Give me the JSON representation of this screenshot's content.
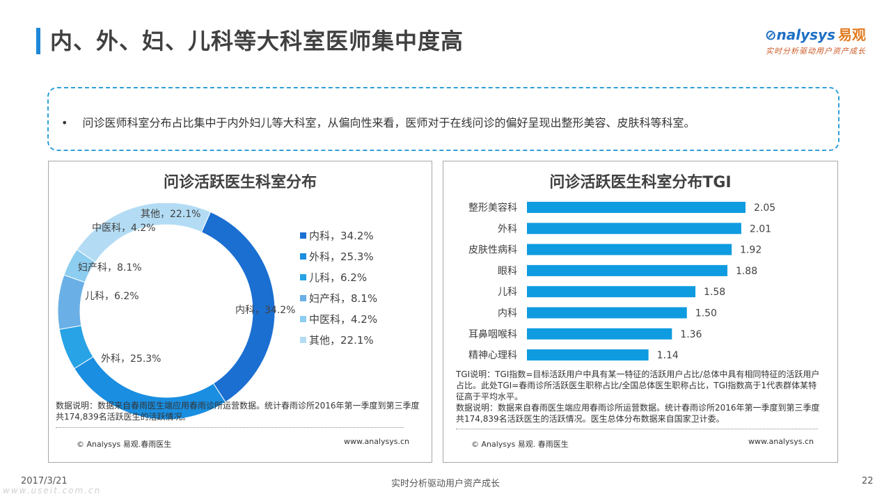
{
  "header": {
    "title": "内、外、妇、儿科等大科室医师集中度高",
    "logo_en": "nalysys",
    "logo_cn": "易观",
    "logo_tagline": "实时分析驱动用户资产成长"
  },
  "summary": {
    "bullet": "•",
    "text": "问诊医师科室分布占比集中于内外妇儿等大科室，从偏向性来看，医师对于在线问诊的偏好呈现出整形美容、皮肤科等科室。"
  },
  "left_panel": {
    "title": "问诊活跃医生科室分布",
    "note": "数据说明：数据来自春雨医生端应用春雨诊所运营数据。统计春雨诊所2016年第一季度到第三季度共174,839名活跃医生的活跃情况。",
    "copyright": "© Analysys 易观.春雨医生",
    "url": "www.analysys.cn"
  },
  "right_panel": {
    "title": "问诊活跃医生科室分布TGI",
    "note_tgi": "TGI说明：TGI指数=目标活跃用户中具有某一特征的活跃用户占比/总体中具有相同特征的活跃用户占比。此处TGI=春雨诊所活跃医生职称占比/全国总体医生职称占比，TGI指数高于1代表群体某特征高于平均水平。",
    "note_data": "数据说明：数据来自春雨医生端应用春雨诊所运营数据。统计春雨诊所2016年第一季度到第三季度共174,839名活跃医生的活跃情况。医生总体分布数据来自国家卫计委。",
    "copyright": "© Analysys 易观. 春雨医生",
    "url": "www.analysys.cn"
  },
  "chart_data": [
    {
      "type": "pie",
      "title": "问诊活跃医生科室分布",
      "donut": true,
      "categories": [
        "内科",
        "外科",
        "儿科",
        "妇产科",
        "中医科",
        "其他"
      ],
      "values": [
        34.2,
        25.3,
        6.2,
        8.1,
        4.2,
        22.1
      ],
      "labels": [
        "内科，34.2%",
        "外科，25.3%",
        "儿科，6.2%",
        "妇产科，8.1%",
        "中医科，4.2%",
        "其他，22.1%"
      ],
      "colors": [
        "#1b6fd1",
        "#1a8ee0",
        "#27a3e6",
        "#6ab0e6",
        "#8ccdf0",
        "#b3dcf4"
      ],
      "legend_position": "right"
    },
    {
      "type": "bar",
      "orientation": "horizontal",
      "title": "问诊活跃医生科室分布TGI",
      "categories": [
        "整形美容科",
        "外科",
        "皮肤性病科",
        "眼科",
        "儿科",
        "内科",
        "耳鼻咽喉科",
        "精神心理科"
      ],
      "values": [
        2.05,
        2.01,
        1.92,
        1.88,
        1.58,
        1.5,
        1.36,
        1.14
      ],
      "value_labels": [
        "2.05",
        "2.01",
        "1.92",
        "1.88",
        "1.58",
        "1.50",
        "1.36",
        "1.14"
      ],
      "xlim": [
        0,
        2.05
      ],
      "color": "#0f9be0"
    }
  ],
  "footer": {
    "date": "2017/3/21",
    "tagline": "实时分析驱动用户资产成长",
    "page": "22",
    "watermark_url": "www.useit.com.cn"
  }
}
